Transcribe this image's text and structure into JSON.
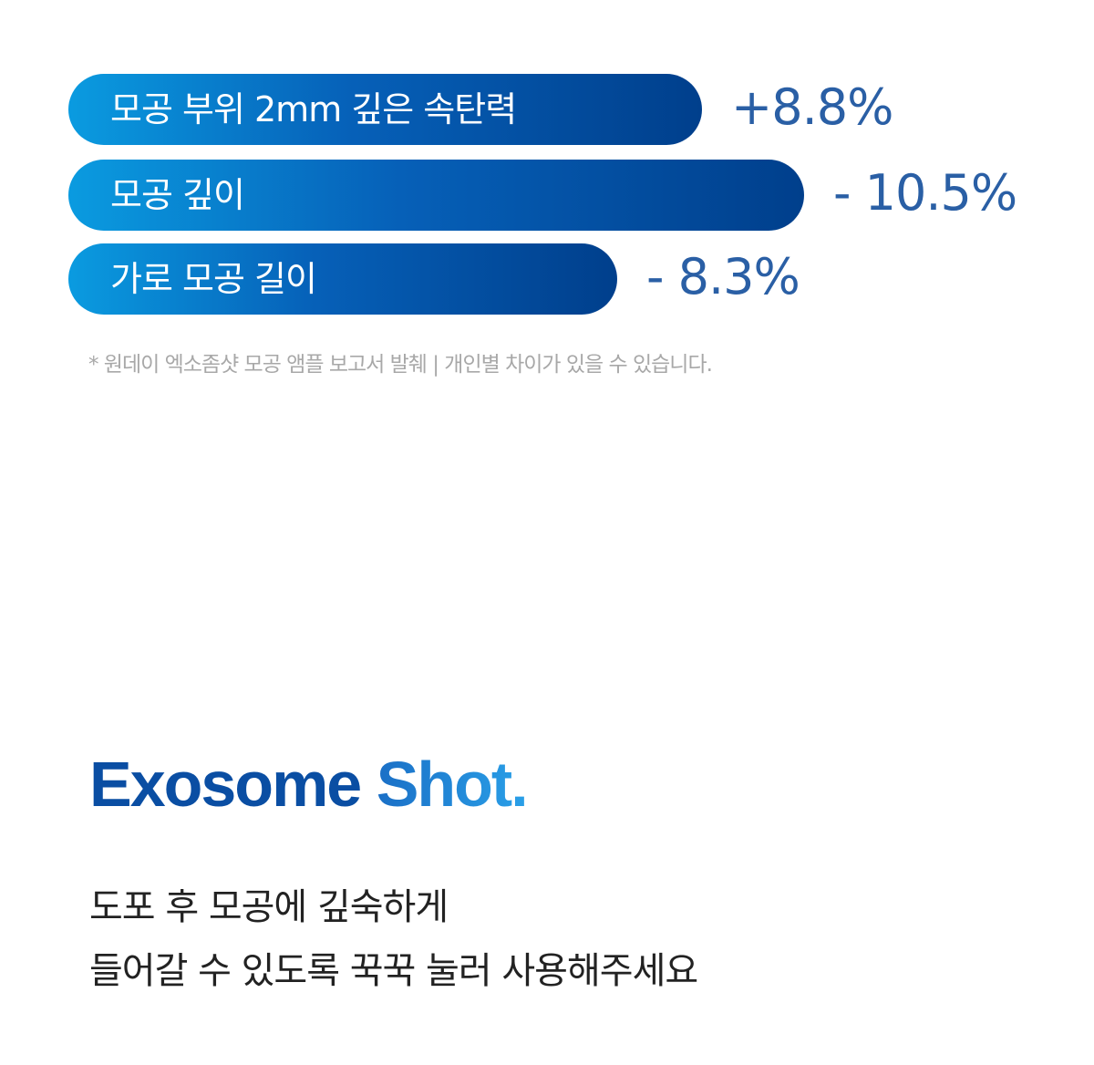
{
  "chart_data": {
    "type": "bar",
    "orientation": "horizontal",
    "categories": [
      "모공 부위 2mm 깊은 속탄력",
      "모공 깊이",
      "가로 모공 길이"
    ],
    "values": [
      8.8,
      -10.5,
      -8.3
    ],
    "value_labels": [
      "+8.8%",
      "- 10.5%",
      "- 8.3%"
    ],
    "bar_color_gradient": [
      "#0a9be0",
      "#003f8c"
    ],
    "value_color": "#2a5fa5"
  },
  "footnote": "* 원데이 엑소좀샷 모공 앰플 보고서 발췌  |  개인별 차이가 있을 수 있습니다.",
  "brand": {
    "part1": "Exosome",
    "part2": "Shot.",
    "color1": "#0a4ea3",
    "color2": "#2aa0e8"
  },
  "description": [
    "도포 후 모공에 깊숙하게",
    "들어갈 수 있도록 꾹꾹 눌러 사용해주세요"
  ]
}
